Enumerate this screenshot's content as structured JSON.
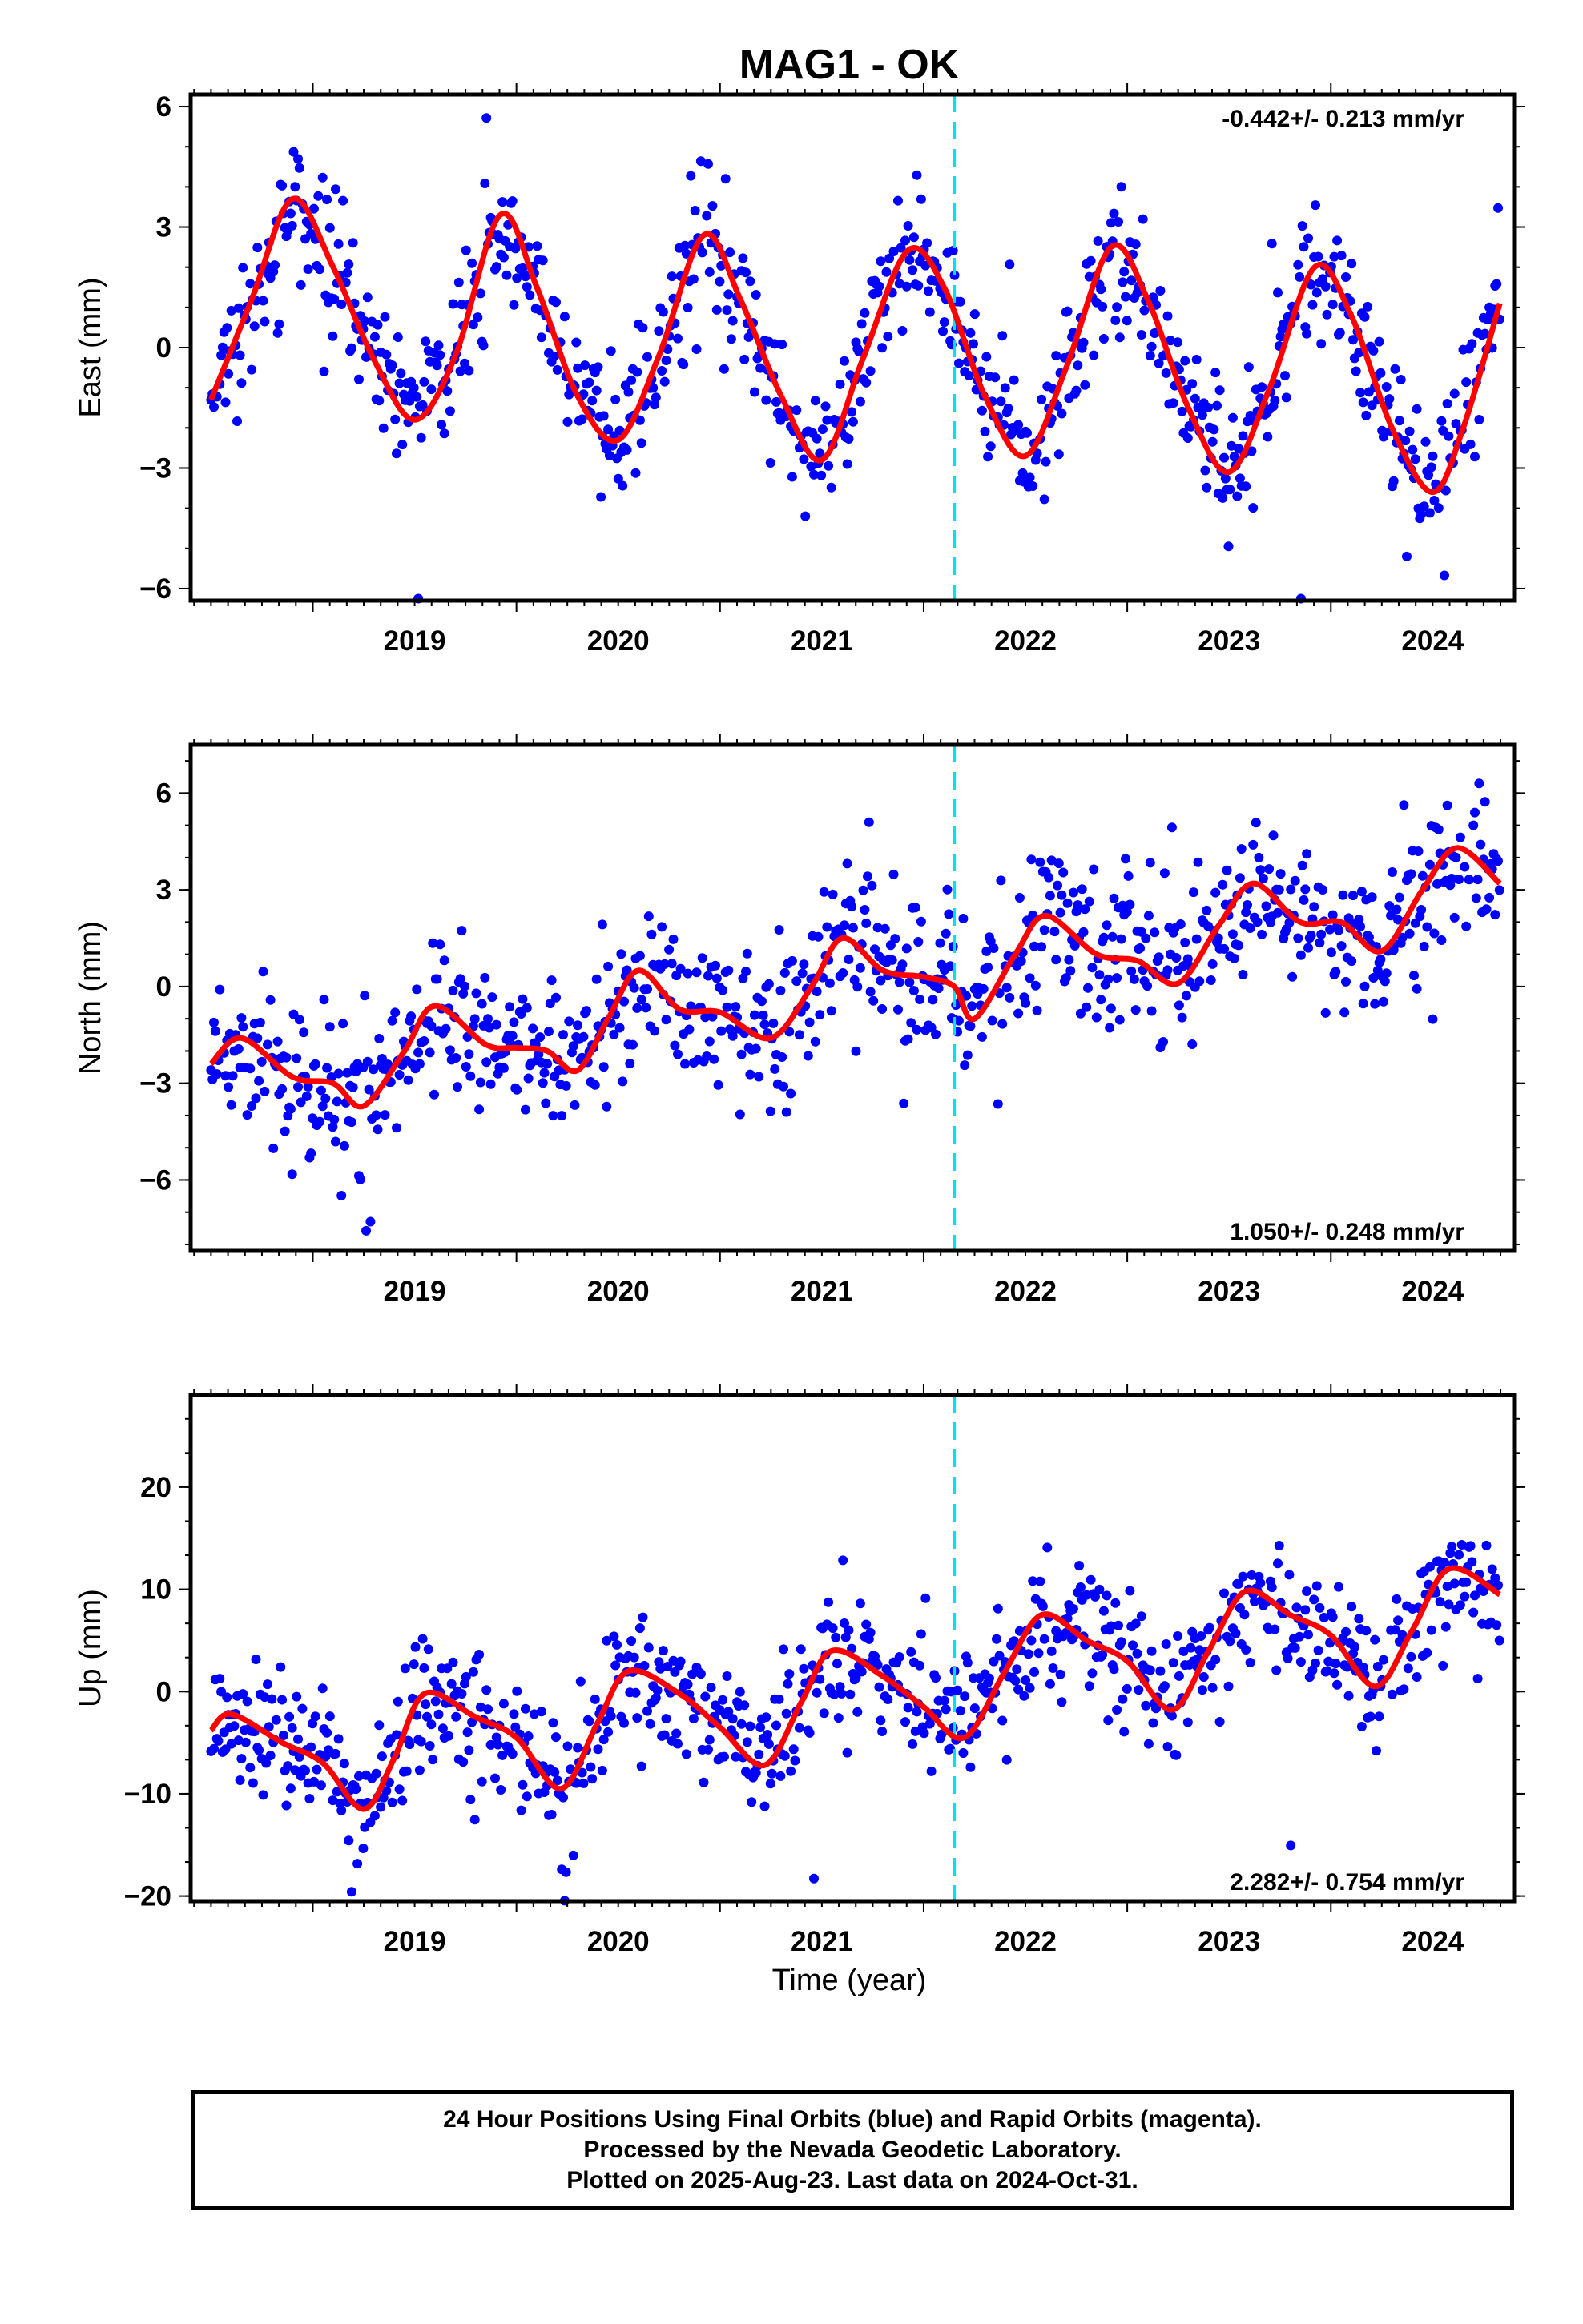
{
  "title": "MAG1 - OK",
  "xlabel": "Time (year)",
  "colors": {
    "data": "#0000ff",
    "model": "#ff0000",
    "event": "#00e0f0",
    "frame": "#000000"
  },
  "footer": {
    "line1": "24 Hour Positions Using Final Orbits (blue) and Rapid Orbits (magenta).",
    "line2": "Processed by the Nevada Geodetic Laboratory.",
    "line3": "Plotted on 2025-Aug-23. Last data on 2024-Oct-31."
  },
  "chart_data": [
    {
      "type": "scatter",
      "ylabel": "East (mm)",
      "rate": "-0.442+/- 0.213 mm/yr",
      "rate_position": "top-right",
      "xlim": [
        2018.4,
        2024.9
      ],
      "ylim": [
        -6.3,
        6.3
      ],
      "x_ticks": [
        "2019",
        "2020",
        "2021",
        "2022",
        "2023",
        "2024"
      ],
      "y_ticks": [
        "6",
        "3",
        "0",
        "−3",
        "−6"
      ],
      "y_tick_values": [
        6,
        3,
        0,
        -3,
        -6
      ],
      "event_line_x": 2022.15,
      "data_start": 2018.5,
      "data_end": 2024.83,
      "trend_mm_per_yr": -0.442,
      "seasonal_amplitude_mm": 2.9,
      "scatter_mm": 0.85,
      "model_curve": [
        [
          2018.5,
          -1.3
        ],
        [
          2018.7,
          1.2
        ],
        [
          2018.9,
          3.7
        ],
        [
          2019.1,
          2.0
        ],
        [
          2019.3,
          -0.3
        ],
        [
          2019.5,
          -1.8
        ],
        [
          2019.7,
          -0.2
        ],
        [
          2019.92,
          3.3
        ],
        [
          2020.1,
          1.5
        ],
        [
          2020.3,
          -1.2
        ],
        [
          2020.5,
          -2.3
        ],
        [
          2020.7,
          -0.2
        ],
        [
          2020.92,
          2.8
        ],
        [
          2021.1,
          1.2
        ],
        [
          2021.3,
          -1.2
        ],
        [
          2021.5,
          -2.8
        ],
        [
          2021.7,
          -0.3
        ],
        [
          2021.92,
          2.4
        ],
        [
          2022.1,
          1.5
        ],
        [
          2022.3,
          -1.2
        ],
        [
          2022.5,
          -2.7
        ],
        [
          2022.7,
          -0.5
        ],
        [
          2022.92,
          2.5
        ],
        [
          2023.1,
          1.2
        ],
        [
          2023.3,
          -1.5
        ],
        [
          2023.5,
          -3.1
        ],
        [
          2023.7,
          -1.0
        ],
        [
          2023.92,
          2.0
        ],
        [
          2024.1,
          0.8
        ],
        [
          2024.3,
          -2.0
        ],
        [
          2024.5,
          -3.6
        ],
        [
          2024.65,
          -2.0
        ],
        [
          2024.83,
          1.1
        ]
      ]
    },
    {
      "type": "scatter",
      "ylabel": "North (mm)",
      "rate": "1.050+/- 0.248 mm/yr",
      "rate_position": "bottom-right",
      "xlim": [
        2018.4,
        2024.9
      ],
      "ylim": [
        -8.2,
        7.5
      ],
      "x_ticks": [
        "2019",
        "2020",
        "2021",
        "2022",
        "2023",
        "2024"
      ],
      "y_ticks": [
        "6",
        "3",
        "0",
        "−3",
        "−6"
      ],
      "y_tick_values": [
        6,
        3,
        0,
        -3,
        -6
      ],
      "event_line_x": 2022.15,
      "data_start": 2018.5,
      "data_end": 2024.83,
      "trend_mm_per_yr": 1.05,
      "seasonal_amplitude_mm": 0.9,
      "scatter_mm": 1.2,
      "model_curve": [
        [
          2018.5,
          -2.4
        ],
        [
          2018.65,
          -1.6
        ],
        [
          2018.9,
          -2.8
        ],
        [
          2019.1,
          -3.0
        ],
        [
          2019.25,
          -3.7
        ],
        [
          2019.45,
          -2.0
        ],
        [
          2019.6,
          -0.6
        ],
        [
          2019.85,
          -1.8
        ],
        [
          2020.0,
          -1.9
        ],
        [
          2020.15,
          -2.0
        ],
        [
          2020.3,
          -2.6
        ],
        [
          2020.45,
          -1.0
        ],
        [
          2020.6,
          0.5
        ],
        [
          2020.8,
          -0.7
        ],
        [
          2021.0,
          -0.8
        ],
        [
          2021.25,
          -1.6
        ],
        [
          2021.45,
          0.0
        ],
        [
          2021.6,
          1.5
        ],
        [
          2021.8,
          0.5
        ],
        [
          2022.0,
          0.3
        ],
        [
          2022.15,
          0.0
        ],
        [
          2022.25,
          -1.0
        ],
        [
          2022.45,
          1.0
        ],
        [
          2022.6,
          2.2
        ],
        [
          2022.85,
          1.0
        ],
        [
          2023.05,
          0.8
        ],
        [
          2023.25,
          0.1
        ],
        [
          2023.45,
          1.9
        ],
        [
          2023.62,
          3.2
        ],
        [
          2023.85,
          2.0
        ],
        [
          2024.05,
          2.0
        ],
        [
          2024.25,
          1.1
        ],
        [
          2024.45,
          3.0
        ],
        [
          2024.62,
          4.3
        ],
        [
          2024.83,
          3.2
        ]
      ]
    },
    {
      "type": "scatter",
      "ylabel": "Up (mm)",
      "rate": "2.282+/- 0.754 mm/yr",
      "rate_position": "bottom-right",
      "xlim": [
        2018.4,
        2024.9
      ],
      "ylim": [
        -20.5,
        29
      ],
      "x_ticks": [
        "2019",
        "2020",
        "2021",
        "2022",
        "2023",
        "2024"
      ],
      "y_ticks": [
        "20",
        "10",
        "0",
        "−10",
        "−20"
      ],
      "y_tick_values": [
        20,
        10,
        0,
        -10,
        -20
      ],
      "event_line_x": 2022.15,
      "data_start": 2018.5,
      "data_end": 2024.83,
      "trend_mm_per_yr": 2.282,
      "seasonal_amplitude_mm": 4.5,
      "scatter_mm": 3.3,
      "model_curve": [
        [
          2018.5,
          -3.8
        ],
        [
          2018.6,
          -2.2
        ],
        [
          2018.85,
          -5.0
        ],
        [
          2019.05,
          -7.0
        ],
        [
          2019.25,
          -11.5
        ],
        [
          2019.4,
          -6.5
        ],
        [
          2019.55,
          -0.2
        ],
        [
          2019.8,
          -2.5
        ],
        [
          2020.0,
          -4.5
        ],
        [
          2020.22,
          -9.5
        ],
        [
          2020.4,
          -3.0
        ],
        [
          2020.55,
          2.0
        ],
        [
          2020.8,
          -0.2
        ],
        [
          2021.0,
          -3.5
        ],
        [
          2021.22,
          -7.2
        ],
        [
          2021.4,
          -1.0
        ],
        [
          2021.55,
          4.0
        ],
        [
          2021.8,
          1.5
        ],
        [
          2022.0,
          -1.5
        ],
        [
          2022.2,
          -4.5
        ],
        [
          2022.4,
          2.0
        ],
        [
          2022.58,
          7.5
        ],
        [
          2022.8,
          5.0
        ],
        [
          2023.0,
          3.0
        ],
        [
          2023.22,
          -1.8
        ],
        [
          2023.4,
          4.0
        ],
        [
          2023.58,
          9.8
        ],
        [
          2023.8,
          7.5
        ],
        [
          2024.0,
          5.5
        ],
        [
          2024.22,
          0.5
        ],
        [
          2024.4,
          6.0
        ],
        [
          2024.58,
          12.0
        ],
        [
          2024.83,
          9.5
        ]
      ]
    }
  ]
}
